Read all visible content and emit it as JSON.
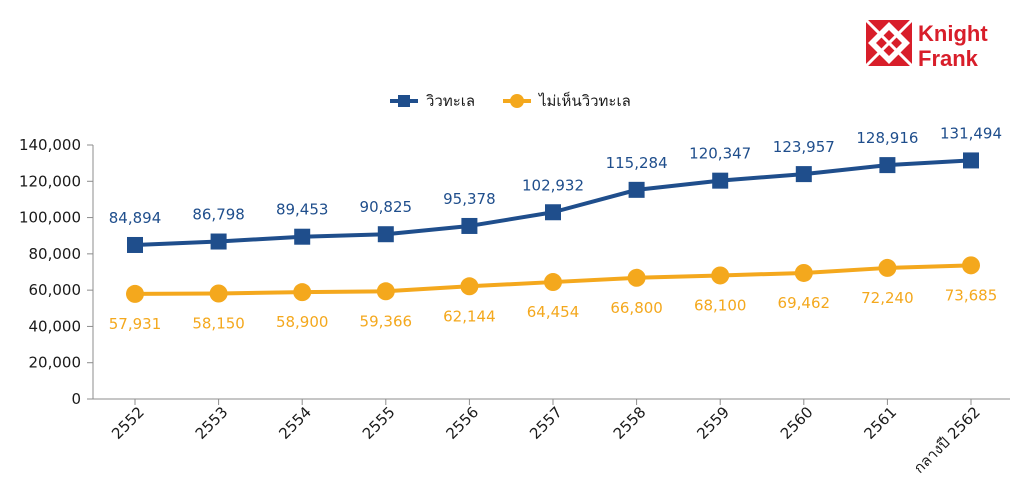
{
  "logo": {
    "line1": "Knight",
    "line2": "Frank",
    "color": "#d81e2a"
  },
  "chart_data": {
    "type": "line",
    "categories": [
      "2552",
      "2553",
      "2554",
      "2555",
      "2556",
      "2557",
      "2558",
      "2559",
      "2560",
      "2561",
      "กลางปี 2562"
    ],
    "series": [
      {
        "name": "วิวทะเล",
        "color": "#1f4e8c",
        "marker": "square",
        "values": [
          84894,
          86798,
          89453,
          90825,
          95378,
          102932,
          115284,
          120347,
          123957,
          128916,
          131494
        ],
        "labels": [
          "84,894",
          "86,798",
          "89,453",
          "90,825",
          "95,378",
          "102,932",
          "115,284",
          "120,347",
          "123,957",
          "128,916",
          "131,494"
        ]
      },
      {
        "name": "ไม่เห็นวิวทะเล",
        "color": "#f4a81d",
        "marker": "circle",
        "values": [
          57931,
          58150,
          58900,
          59366,
          62144,
          64454,
          66800,
          68100,
          69462,
          72240,
          73685
        ],
        "labels": [
          "57,931",
          "58,150",
          "58,900",
          "59,366",
          "62,144",
          "64,454",
          "66,800",
          "68,100",
          "69,462",
          "72,240",
          "73,685"
        ]
      }
    ],
    "ylim": [
      0,
      140000
    ],
    "yticks": [
      0,
      20000,
      40000,
      60000,
      80000,
      100000,
      120000,
      140000
    ],
    "ytick_labels": [
      "0",
      "20,000",
      "40,000",
      "60,000",
      "80,000",
      "100,000",
      "120,000",
      "140,000"
    ],
    "xlabel": "",
    "ylabel": "",
    "title": "",
    "legend_position": "top-center",
    "grid": false
  }
}
